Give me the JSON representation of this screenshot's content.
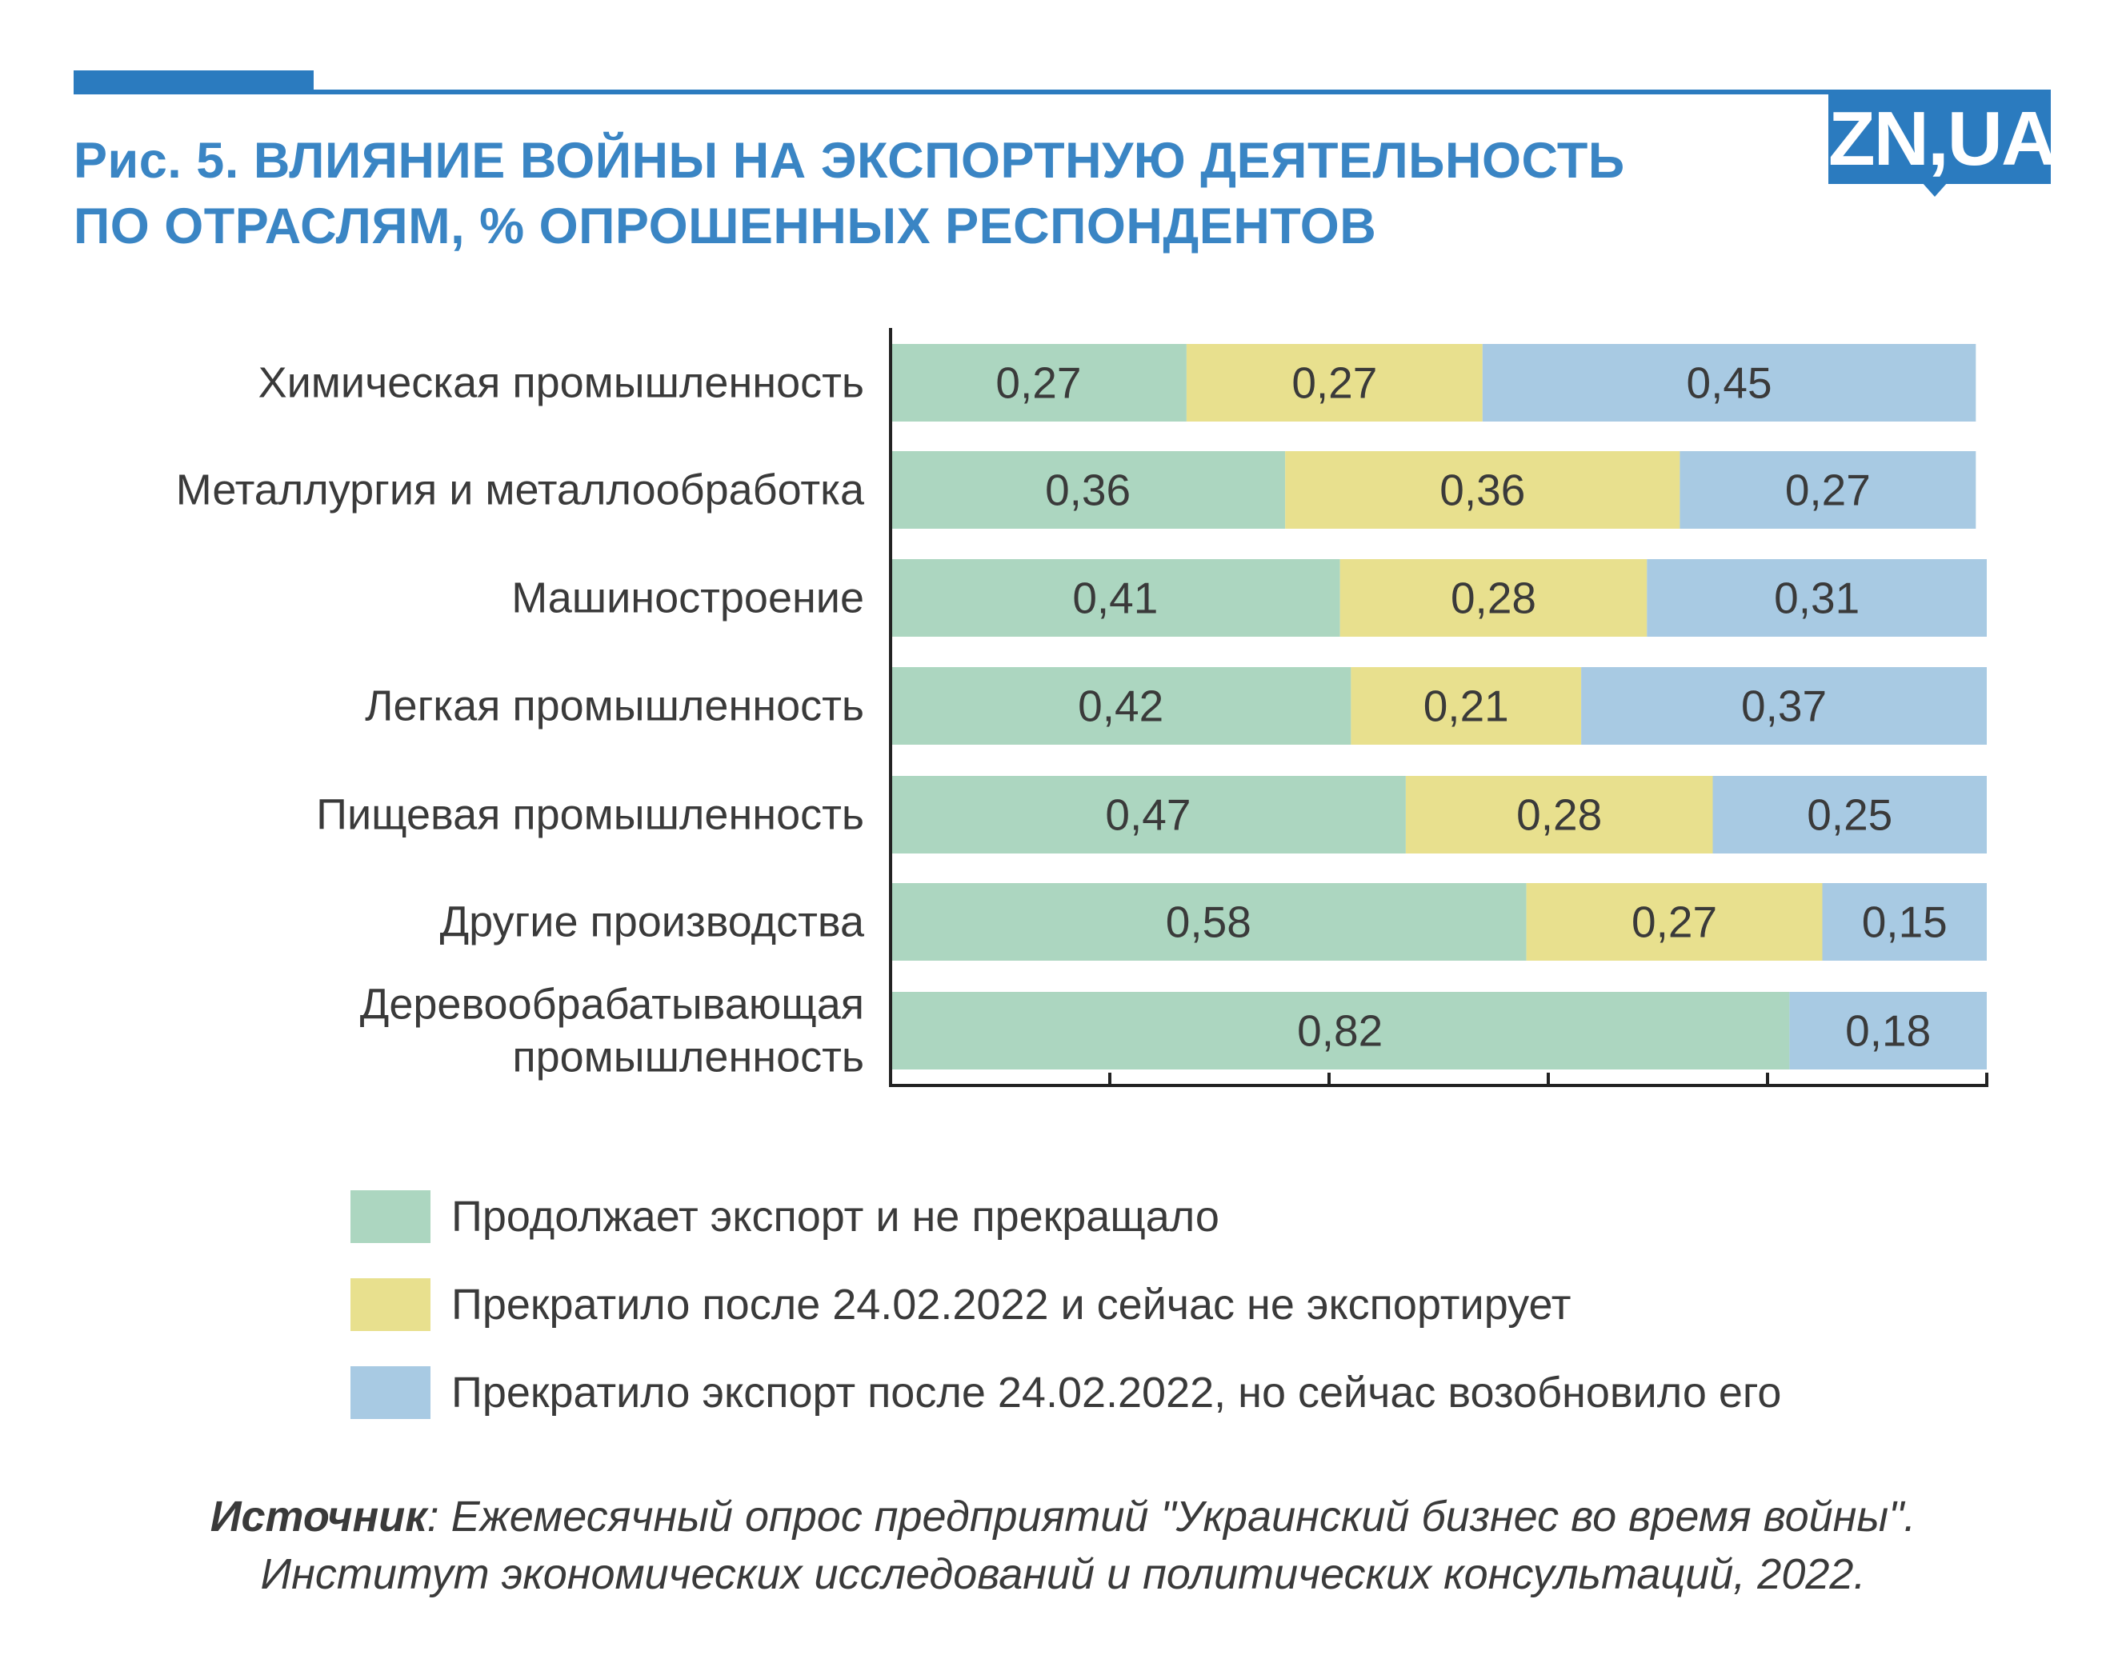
{
  "title": {
    "line1": "Рис. 5. ВЛИЯНИЕ ВОЙНЫ НА ЭКСПОРТНУЮ ДЕЯТЕЛЬНОСТЬ",
    "line2": "ПО ОТРАСЛЯМ, % ОПРОШЕННЫХ РЕСПОНДЕНТОВ"
  },
  "logo": "ZN,UA",
  "colors": {
    "accent": "#2b7bbf",
    "title": "#3a85c4",
    "series": [
      "#acd6c0",
      "#e8e08e",
      "#a8cae3"
    ],
    "text": "#3a3a3a"
  },
  "chart_data": {
    "type": "bar",
    "orientation": "horizontal",
    "stacked": true,
    "categories": [
      [
        "Химическая промышленность"
      ],
      [
        "Металлургия и металлообработка"
      ],
      [
        "Машиностроение"
      ],
      [
        "Легкая промышленность"
      ],
      [
        "Пищевая промышленность"
      ],
      [
        "Другие производства"
      ],
      [
        "Деревообрабатывающая",
        "промышленность"
      ]
    ],
    "series": [
      {
        "name": "Продолжает экспорт и не прекращало",
        "values": [
          0.27,
          0.36,
          0.41,
          0.42,
          0.47,
          0.58,
          0.82
        ],
        "labels": [
          "0,27",
          "0,36",
          "0,41",
          "0,42",
          "0,47",
          "0,58",
          "0,82"
        ]
      },
      {
        "name": "Прекратило после 24.02.2022 и сейчас не экспортирует",
        "values": [
          0.27,
          0.36,
          0.28,
          0.21,
          0.28,
          0.27,
          0
        ],
        "labels": [
          "0,27",
          "0,36",
          "0,28",
          "0,21",
          "0,28",
          "0,27",
          ""
        ]
      },
      {
        "name": "Прекратило экспорт после 24.02.2022, но сейчас возобновило его",
        "values": [
          0.45,
          0.27,
          0.31,
          0.37,
          0.25,
          0.15,
          0.18
        ],
        "labels": [
          "0,45",
          "0,27",
          "0,31",
          "0,37",
          "0,25",
          "0,15",
          "0,18"
        ]
      }
    ],
    "xlim": [
      0,
      1
    ],
    "x_ticks": [
      0,
      0.2,
      0.4,
      0.6,
      0.8,
      1.0
    ],
    "x_tick_labels_shown": false,
    "grid": false,
    "legend_position": "bottom"
  },
  "source": {
    "label": "Источник",
    "line1": ": Ежемесячный опрос предприятий \"Украинский бизнес во время войны\".",
    "line2": "Институт экономических исследований и политических консультаций, 2022."
  }
}
